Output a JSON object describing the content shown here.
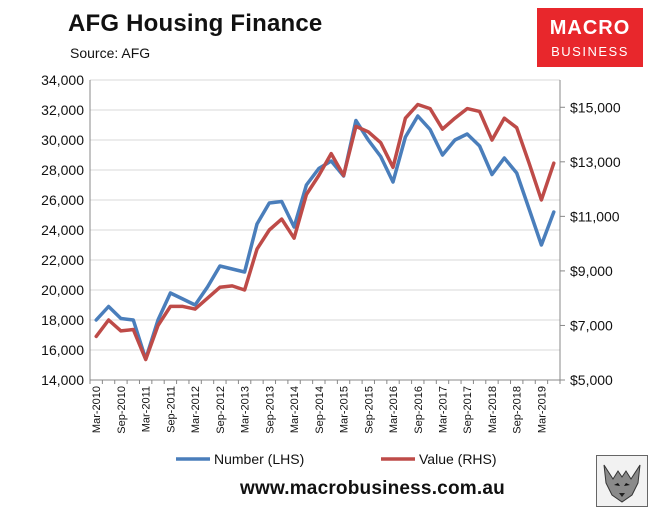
{
  "title": "AFG Housing Finance",
  "source": "Source: AFG",
  "logo": {
    "line1": "MACRO",
    "line2": "BUSINESS"
  },
  "website": "www.macrobusiness.com.au",
  "colors": {
    "number": "#4a7ebb",
    "value": "#be4b48",
    "logo_bg": "#e8272c"
  },
  "chart_data": {
    "type": "line",
    "title": "AFG Housing Finance",
    "x": [
      "Mar-2010",
      "Jun-2010",
      "Sep-2010",
      "Dec-2010",
      "Mar-2011",
      "Jun-2011",
      "Sep-2011",
      "Dec-2011",
      "Mar-2012",
      "Jun-2012",
      "Sep-2012",
      "Dec-2012",
      "Mar-2013",
      "Jun-2013",
      "Sep-2013",
      "Dec-2013",
      "Mar-2014",
      "Jun-2014",
      "Sep-2014",
      "Dec-2014",
      "Mar-2015",
      "Jun-2015",
      "Sep-2015",
      "Dec-2015",
      "Mar-2016",
      "Jun-2016",
      "Sep-2016",
      "Dec-2016",
      "Mar-2017",
      "Jun-2017",
      "Sep-2017",
      "Dec-2017",
      "Mar-2018",
      "Jun-2018",
      "Sep-2018",
      "Dec-2018",
      "Mar-2019",
      "Jun-2019"
    ],
    "x_tick_labels": [
      "Mar-2010",
      "Sep-2010",
      "Mar-2011",
      "Sep-2011",
      "Mar-2012",
      "Sep-2012",
      "Mar-2013",
      "Sep-2013",
      "Mar-2014",
      "Sep-2014",
      "Mar-2015",
      "Sep-2015",
      "Mar-2016",
      "Sep-2016",
      "Mar-2017",
      "Sep-2017",
      "Mar-2018",
      "Sep-2018",
      "Mar-2019"
    ],
    "y_left": {
      "min": 14000,
      "max": 34000,
      "ticks": [
        "14,000",
        "16,000",
        "18,000",
        "20,000",
        "22,000",
        "24,000",
        "26,000",
        "28,000",
        "30,000",
        "32,000",
        "34,000"
      ]
    },
    "y_right": {
      "min": 5000,
      "max": 16000,
      "ticks": [
        "$5,000",
        "$7,000",
        "$9,000",
        "$11,000",
        "$13,000",
        "$15,000"
      ]
    },
    "series": [
      {
        "name": "Number (LHS)",
        "axis": "left",
        "values": [
          18000,
          18900,
          18100,
          18000,
          15400,
          18000,
          19800,
          19400,
          19000,
          20200,
          21600,
          21400,
          21200,
          24400,
          25800,
          25900,
          24200,
          27000,
          28100,
          28600,
          27600,
          31300,
          30000,
          28900,
          27200,
          30200,
          31600,
          30700,
          29000,
          30000,
          30400,
          29600,
          27700,
          28800,
          27800,
          25400,
          23000,
          25200
        ]
      },
      {
        "name": "Value (RHS)",
        "axis": "right",
        "values": [
          6600,
          7200,
          6800,
          6850,
          5750,
          7000,
          7700,
          7700,
          7600,
          8000,
          8400,
          8450,
          8300,
          9800,
          10500,
          10900,
          10200,
          11800,
          12500,
          13300,
          12500,
          14300,
          14100,
          13700,
          12800,
          14600,
          15100,
          14950,
          14200,
          14600,
          14950,
          14850,
          13800,
          14600,
          14250,
          12950,
          11600,
          12950
        ]
      }
    ],
    "legend": {
      "position": "bottom",
      "entries": [
        "Number (LHS)",
        "Value (RHS)"
      ]
    },
    "grid": {
      "horizontal": true,
      "vertical": false
    }
  }
}
